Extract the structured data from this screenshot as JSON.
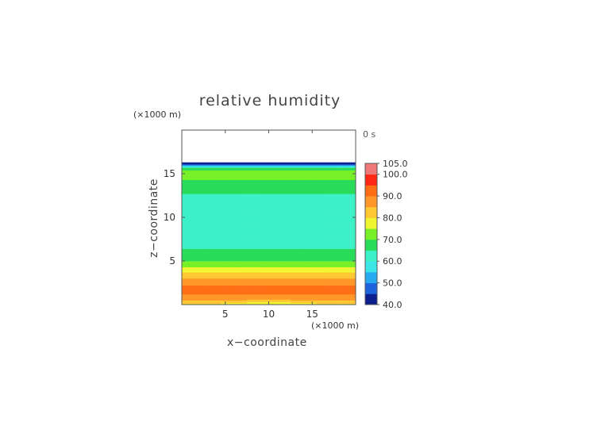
{
  "chart_data": {
    "type": "heatmap",
    "title": "relative humidity",
    "time_label": "0 s",
    "xlabel": "x−coordinate",
    "ylabel": "z−coordinate",
    "x_unit": "(×1000 m)",
    "z_unit": "(×1000 m)",
    "xlim": [
      0,
      20
    ],
    "ylim": [
      0,
      20
    ],
    "x_ticks": [
      5,
      10,
      15
    ],
    "y_ticks": [
      5,
      10,
      15
    ],
    "colorbar": {
      "min": 40,
      "max": 105,
      "labels": [
        "105.0",
        "100.0",
        "90.0",
        "80.0",
        "70.0",
        "60.0",
        "50.0",
        "40.0"
      ],
      "label_values": [
        105,
        100,
        90,
        80,
        70,
        60,
        50,
        40
      ]
    },
    "colormap": [
      {
        "value": 40,
        "color": "#0a1e8c"
      },
      {
        "value": 45,
        "color": "#1e64dc"
      },
      {
        "value": 50,
        "color": "#28aaf0"
      },
      {
        "value": 55,
        "color": "#3ce6e6"
      },
      {
        "value": 60,
        "color": "#3cf0c8"
      },
      {
        "value": 65,
        "color": "#28dc5a"
      },
      {
        "value": 70,
        "color": "#78f028"
      },
      {
        "value": 75,
        "color": "#f0f532"
      },
      {
        "value": 80,
        "color": "#ffc832"
      },
      {
        "value": 85,
        "color": "#ff9628"
      },
      {
        "value": 90,
        "color": "#ff6e14"
      },
      {
        "value": 95,
        "color": "#ff2814"
      },
      {
        "value": 100,
        "color": "#f07878"
      },
      {
        "value": 105,
        "color": "#f5b4b4"
      }
    ],
    "rh_profile": {
      "z": [
        0.0,
        0.3,
        0.6,
        1.0,
        1.5,
        2.0,
        2.5,
        3.0,
        3.4,
        3.8,
        4.2,
        4.6,
        5.0,
        5.4,
        5.8,
        6.2,
        6.6,
        7.0,
        8.0,
        9.0,
        10.0,
        11.0,
        12.0,
        12.6,
        13.0,
        13.4,
        13.8,
        14.3,
        14.8,
        15.3,
        15.7,
        15.9,
        16.0,
        16.1,
        16.2
      ],
      "rh": [
        79.0,
        83.0,
        87.0,
        89.0,
        92.0,
        91.0,
        88.0,
        85.0,
        82.0,
        79.0,
        76.0,
        72.0,
        70.0,
        67.0,
        66.0,
        68.0,
        63.0,
        61.0,
        60.0,
        60.0,
        60.0,
        60.0,
        61.0,
        64.0,
        67.0,
        68.0,
        66.0,
        70.0,
        73.0,
        72.0,
        65.0,
        57.0,
        50.0,
        44.0,
        40.0
      ]
    },
    "no_data_above_z": 16.2
  }
}
